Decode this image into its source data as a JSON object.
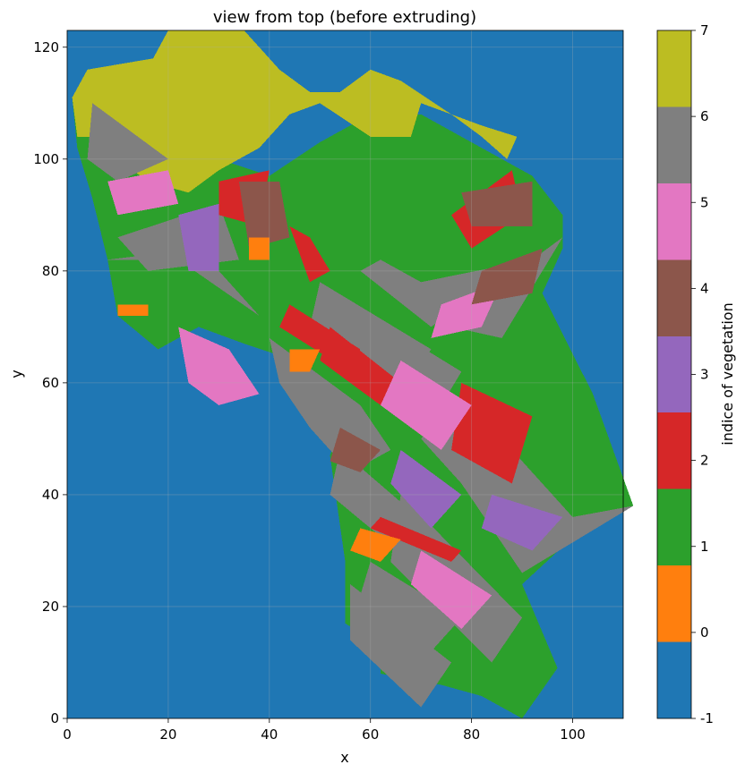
{
  "chart_data": {
    "type": "heatmap",
    "title": "view from top (before extruding)",
    "xlabel": "x",
    "ylabel": "y",
    "xlim": [
      0,
      110
    ],
    "ylim": [
      0,
      123
    ],
    "x_ticks": [
      0,
      20,
      40,
      60,
      80,
      100
    ],
    "y_ticks": [
      0,
      20,
      40,
      60,
      80,
      100,
      120
    ],
    "grid": true,
    "colorbar": {
      "label": "indice of vegetation",
      "range": [
        -1,
        7
      ],
      "ticks": [
        -1,
        0,
        1,
        2,
        3,
        4,
        5,
        6,
        7
      ],
      "tick_labels": [
        "-1",
        "0",
        "1",
        "2",
        "3",
        "4",
        "5",
        "6",
        "7"
      ],
      "categories": [
        {
          "value": -1,
          "color": "#1f77b4"
        },
        {
          "value": 0,
          "color": "#ff7f0e"
        },
        {
          "value": 1,
          "color": "#2ca02c"
        },
        {
          "value": 2,
          "color": "#d62728"
        },
        {
          "value": 3,
          "color": "#9467bd"
        },
        {
          "value": 4,
          "color": "#8c564b"
        },
        {
          "value": 5,
          "color": "#e377c2"
        },
        {
          "value": 6,
          "color": "#7f7f7f"
        },
        {
          "value": 7,
          "color": "#bcbd22"
        }
      ]
    },
    "background_value": -1,
    "regions": [
      {
        "value": 1,
        "points": [
          [
            1,
            111
          ],
          [
            6,
            110
          ],
          [
            15,
            108
          ],
          [
            24,
            104
          ],
          [
            30,
            100
          ],
          [
            40,
            97
          ],
          [
            50,
            103
          ],
          [
            60,
            108
          ],
          [
            70,
            108
          ],
          [
            78,
            104
          ],
          [
            86,
            100
          ],
          [
            92,
            97
          ],
          [
            98,
            90
          ],
          [
            98,
            84
          ],
          [
            94,
            76
          ],
          [
            104,
            58
          ],
          [
            112,
            38
          ],
          [
            102,
            34
          ],
          [
            90,
            24
          ],
          [
            97,
            9
          ],
          [
            90,
            0
          ],
          [
            82,
            4
          ],
          [
            74,
            6
          ],
          [
            62,
            8
          ],
          [
            62,
            13
          ],
          [
            55,
            17
          ],
          [
            55,
            28
          ],
          [
            52,
            47
          ],
          [
            54,
            53
          ],
          [
            45,
            64
          ],
          [
            35,
            67
          ],
          [
            26,
            70
          ],
          [
            18,
            66
          ],
          [
            10,
            72
          ],
          [
            8,
            82
          ],
          [
            5,
            93
          ],
          [
            2,
            102
          ]
        ]
      },
      {
        "value": 7,
        "points": [
          [
            1,
            111
          ],
          [
            4,
            116
          ],
          [
            17,
            118
          ],
          [
            20,
            123
          ],
          [
            35,
            123
          ],
          [
            42,
            116
          ],
          [
            48,
            112
          ],
          [
            54,
            112
          ],
          [
            60,
            116
          ],
          [
            66,
            114
          ],
          [
            76,
            108
          ],
          [
            82,
            104
          ],
          [
            87,
            100
          ],
          [
            89,
            104
          ],
          [
            82,
            106
          ],
          [
            76,
            108
          ],
          [
            70,
            110
          ],
          [
            68,
            104
          ],
          [
            60,
            104
          ],
          [
            50,
            110
          ],
          [
            44,
            108
          ],
          [
            38,
            102
          ],
          [
            30,
            98
          ],
          [
            24,
            94
          ],
          [
            16,
            96
          ],
          [
            10,
            100
          ],
          [
            6,
            104
          ],
          [
            2,
            104
          ]
        ]
      },
      {
        "value": 6,
        "points": [
          [
            5,
            110
          ],
          [
            20,
            100
          ],
          [
            10,
            96
          ],
          [
            4,
            100
          ]
        ]
      },
      {
        "value": 6,
        "points": [
          [
            8,
            82
          ],
          [
            26,
            84
          ],
          [
            38,
            72
          ],
          [
            22,
            82
          ]
        ]
      },
      {
        "value": 6,
        "points": [
          [
            10,
            86
          ],
          [
            30,
            92
          ],
          [
            34,
            82
          ],
          [
            16,
            80
          ]
        ]
      },
      {
        "value": 6,
        "points": [
          [
            40,
            68
          ],
          [
            58,
            56
          ],
          [
            64,
            48
          ],
          [
            56,
            44
          ],
          [
            48,
            52
          ],
          [
            42,
            60
          ]
        ]
      },
      {
        "value": 6,
        "points": [
          [
            50,
            78
          ],
          [
            72,
            66
          ],
          [
            66,
            58
          ],
          [
            48,
            70
          ]
        ]
      },
      {
        "value": 6,
        "points": [
          [
            60,
            72
          ],
          [
            78,
            62
          ],
          [
            74,
            56
          ],
          [
            58,
            66
          ]
        ]
      },
      {
        "value": 6,
        "points": [
          [
            78,
            58
          ],
          [
            100,
            36
          ],
          [
            112,
            38
          ],
          [
            90,
            26
          ],
          [
            78,
            42
          ],
          [
            70,
            50
          ]
        ]
      },
      {
        "value": 6,
        "points": [
          [
            54,
            48
          ],
          [
            72,
            34
          ],
          [
            68,
            28
          ],
          [
            52,
            40
          ]
        ]
      },
      {
        "value": 6,
        "points": [
          [
            60,
            28
          ],
          [
            78,
            18
          ],
          [
            72,
            12
          ],
          [
            58,
            22
          ]
        ]
      },
      {
        "value": 6,
        "points": [
          [
            56,
            24
          ],
          [
            76,
            10
          ],
          [
            70,
            2
          ],
          [
            56,
            14
          ]
        ]
      },
      {
        "value": 6,
        "points": [
          [
            66,
            40
          ],
          [
            90,
            18
          ],
          [
            84,
            10
          ],
          [
            64,
            28
          ]
        ]
      },
      {
        "value": 6,
        "points": [
          [
            70,
            78
          ],
          [
            92,
            82
          ],
          [
            98,
            86
          ],
          [
            86,
            68
          ],
          [
            76,
            70
          ]
        ]
      },
      {
        "value": 6,
        "points": [
          [
            58,
            80
          ],
          [
            62,
            82
          ],
          [
            78,
            74
          ],
          [
            72,
            70
          ]
        ]
      },
      {
        "value": 2,
        "points": [
          [
            44,
            74
          ],
          [
            58,
            66
          ],
          [
            56,
            62
          ],
          [
            42,
            70
          ]
        ]
      },
      {
        "value": 2,
        "points": [
          [
            52,
            70
          ],
          [
            66,
            60
          ],
          [
            62,
            56
          ],
          [
            50,
            64
          ]
        ]
      },
      {
        "value": 2,
        "points": [
          [
            76,
            90
          ],
          [
            88,
            98
          ],
          [
            90,
            90
          ],
          [
            80,
            84
          ]
        ]
      },
      {
        "value": 2,
        "points": [
          [
            78,
            60
          ],
          [
            92,
            54
          ],
          [
            88,
            42
          ],
          [
            76,
            48
          ]
        ]
      },
      {
        "value": 2,
        "points": [
          [
            44,
            88
          ],
          [
            48,
            86
          ],
          [
            52,
            80
          ],
          [
            48,
            78
          ]
        ]
      },
      {
        "value": 2,
        "points": [
          [
            62,
            36
          ],
          [
            78,
            30
          ],
          [
            76,
            28
          ],
          [
            60,
            34
          ]
        ]
      },
      {
        "value": 2,
        "points": [
          [
            30,
            96
          ],
          [
            40,
            98
          ],
          [
            38,
            88
          ],
          [
            30,
            90
          ]
        ]
      },
      {
        "value": 5,
        "points": [
          [
            22,
            70
          ],
          [
            32,
            66
          ],
          [
            38,
            58
          ],
          [
            30,
            56
          ],
          [
            24,
            60
          ]
        ]
      },
      {
        "value": 5,
        "points": [
          [
            8,
            96
          ],
          [
            20,
            98
          ],
          [
            22,
            92
          ],
          [
            10,
            90
          ]
        ]
      },
      {
        "value": 5,
        "points": [
          [
            66,
            64
          ],
          [
            80,
            56
          ],
          [
            74,
            48
          ],
          [
            62,
            56
          ]
        ]
      },
      {
        "value": 5,
        "points": [
          [
            74,
            74
          ],
          [
            86,
            78
          ],
          [
            82,
            70
          ],
          [
            72,
            68
          ]
        ]
      },
      {
        "value": 5,
        "points": [
          [
            70,
            30
          ],
          [
            84,
            22
          ],
          [
            78,
            16
          ],
          [
            68,
            24
          ]
        ]
      },
      {
        "value": 3,
        "points": [
          [
            22,
            90
          ],
          [
            30,
            92
          ],
          [
            30,
            80
          ],
          [
            24,
            80
          ]
        ]
      },
      {
        "value": 3,
        "points": [
          [
            66,
            48
          ],
          [
            78,
            40
          ],
          [
            72,
            34
          ],
          [
            64,
            42
          ]
        ]
      },
      {
        "value": 3,
        "points": [
          [
            84,
            40
          ],
          [
            98,
            36
          ],
          [
            92,
            30
          ],
          [
            82,
            34
          ]
        ]
      },
      {
        "value": 4,
        "points": [
          [
            34,
            96
          ],
          [
            42,
            96
          ],
          [
            44,
            86
          ],
          [
            36,
            84
          ]
        ]
      },
      {
        "value": 4,
        "points": [
          [
            78,
            94
          ],
          [
            92,
            96
          ],
          [
            92,
            88
          ],
          [
            80,
            88
          ]
        ]
      },
      {
        "value": 4,
        "points": [
          [
            82,
            80
          ],
          [
            94,
            84
          ],
          [
            92,
            76
          ],
          [
            80,
            74
          ]
        ]
      },
      {
        "value": 4,
        "points": [
          [
            54,
            52
          ],
          [
            62,
            48
          ],
          [
            58,
            44
          ],
          [
            52,
            46
          ]
        ]
      },
      {
        "value": 0,
        "points": [
          [
            10,
            74
          ],
          [
            16,
            74
          ],
          [
            16,
            72
          ],
          [
            10,
            72
          ]
        ]
      },
      {
        "value": 0,
        "points": [
          [
            36,
            86
          ],
          [
            40,
            86
          ],
          [
            40,
            82
          ],
          [
            36,
            82
          ]
        ]
      },
      {
        "value": 0,
        "points": [
          [
            58,
            34
          ],
          [
            66,
            32
          ],
          [
            62,
            28
          ],
          [
            56,
            30
          ]
        ]
      },
      {
        "value": 0,
        "points": [
          [
            44,
            66
          ],
          [
            50,
            66
          ],
          [
            48,
            62
          ],
          [
            44,
            62
          ]
        ]
      }
    ]
  }
}
